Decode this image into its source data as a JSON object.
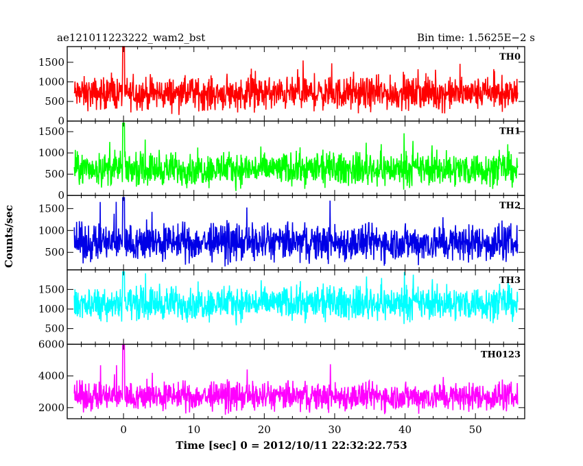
{
  "chart_data": {
    "type": "line",
    "title_left": "ae121011223222_wam2_bst",
    "title_right": "Bin time: 1.5625E−2 s",
    "xlabel": "Time [sec] 0 = 2012/10/11 22:32:22.753",
    "ylabel": "Counts/sec",
    "xlim": [
      -8,
      57
    ],
    "xticks": [
      0,
      10,
      20,
      30,
      40,
      50
    ],
    "xtick_labels": [
      "0",
      "10",
      "20",
      "30",
      "40",
      "50"
    ],
    "series": [
      {
        "name": "TH0",
        "color": "#ff0000",
        "ylim": [
          0,
          1900
        ],
        "yticks": [
          0,
          500,
          1000,
          1500
        ],
        "ytick_labels": [
          "0",
          "500",
          "1000",
          "1500"
        ],
        "x_range": [
          -7,
          56
        ],
        "mean": 700,
        "spread": 320,
        "max": 1900
      },
      {
        "name": "TH1",
        "color": "#00ff00",
        "ylim": [
          0,
          1750
        ],
        "yticks": [
          0,
          500,
          1000,
          1500
        ],
        "ytick_labels": [
          "0",
          "500",
          "1000",
          "1500"
        ],
        "x_range": [
          -7,
          56
        ],
        "mean": 620,
        "spread": 300,
        "max": 1700
      },
      {
        "name": "TH2",
        "color": "#0000e6",
        "ylim": [
          100,
          1800
        ],
        "yticks": [
          500,
          1000,
          1500
        ],
        "ytick_labels": [
          "500",
          "1000",
          "1500"
        ],
        "x_range": [
          -7,
          56
        ],
        "mean": 720,
        "spread": 330,
        "max": 1750
      },
      {
        "name": "TH3",
        "color": "#00ffff",
        "ylim": [
          100,
          2000
        ],
        "yticks": [
          500,
          1000,
          1500
        ],
        "ytick_labels": [
          "500",
          "1000",
          "1500"
        ],
        "x_range": [
          -7,
          56
        ],
        "mean": 1150,
        "spread": 330,
        "max": 1950
      },
      {
        "name": "TH0123",
        "color": "#ff00ff",
        "ylim": [
          1300,
          6000
        ],
        "yticks": [
          2000,
          4000,
          6000
        ],
        "ytick_labels": [
          "2000",
          "4000",
          "6000"
        ],
        "x_range": [
          -7,
          56
        ],
        "mean": 2700,
        "spread": 700,
        "max": 6000
      }
    ]
  }
}
